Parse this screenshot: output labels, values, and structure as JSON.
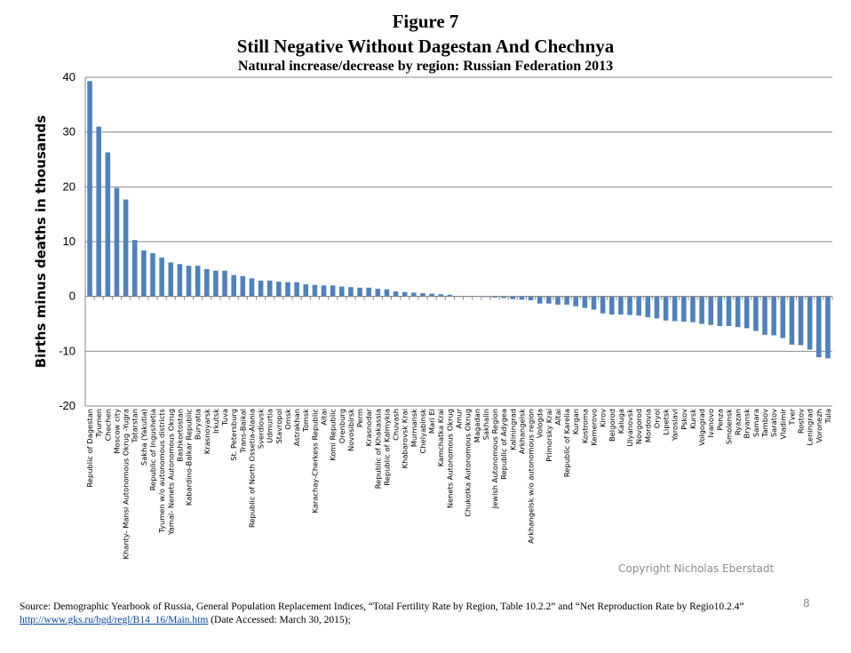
{
  "figure": {
    "label": "Figure 7",
    "title": "Still Negative Without Dagestan And Chechnya",
    "subtitle": "Natural increase/decrease by region: Russian Federation 2013"
  },
  "chart_data": {
    "type": "bar",
    "title": "Still Negative Without Dagestan And Chechnya",
    "subtitle": "Natural increase/decrease by region: Russian Federation 2013",
    "ylabel": "Births minus deaths in thousands",
    "xlabel": "",
    "ylim": [
      -20,
      40
    ],
    "yticks": [
      40,
      30,
      20,
      10,
      0,
      -10,
      -20
    ],
    "grid": true,
    "bar_color": "#4f81bd",
    "categories": [
      "Republic of Dagestan",
      "Tyumen",
      "Chechen",
      "Moscow city",
      "Khanty- Mansi Autonomous Okrug -Yugra",
      "Tatarstan",
      "Sakha (Yakutia)",
      "Republic of Ingushetia",
      "Tyumen w/o autonomous districts",
      "Yamal- Nenets Autonomous Okrug",
      "Bashkortostan",
      "Kabardino-Balkar Republic",
      "Buryatia",
      "Krasnoyarsk",
      "Irkutsk",
      "Tuva",
      "St. Petersburg",
      "Trans-Baikal",
      "Republic of North Ossetia-Alania",
      "Sverdlovsk",
      "Udmurtia",
      "Stavropol",
      "Omsk",
      "Astrakhan",
      "Tomsk",
      "Karachay-Cherkess Republic",
      "Altai",
      "Komi Republic",
      "Orenburg",
      "Novosibirsk",
      "Perm",
      "Krasnodar",
      "Republic of Khakassia",
      "Republic of Kalmykia",
      "Chuvash",
      "Khabarovsk Krai",
      "Murmansk",
      "Chelyabinsk",
      "Mari El",
      "Kamchatka Krai",
      "Nenets Autonomous Okrug",
      "Amur",
      "Chukotka Autonomous Okrug",
      "Magadan",
      "Sakhalin",
      "Jewish Autonomous Region",
      "Republic of Adygea",
      "Kaliningrad",
      "Arkhangelsk",
      "Arkhangelsk w/o autonomous region",
      "Vologda",
      "Primorsky Krai",
      "Altai",
      "Republic of Karelia",
      "Kurgan",
      "Kostroma",
      "Kemerovo",
      "Kirov",
      "Belgorod",
      "Kaluga",
      "Ulyanovsk",
      "Novgorod",
      "Mordovia",
      "Oryol",
      "Lipetsk",
      "Yaroslavl",
      "Pskov",
      "Kursk",
      "Volgograd",
      "Ivanovo",
      "Penza",
      "Smolensk",
      "Ryazan",
      "Bryansk",
      "Samara",
      "Tambov",
      "Saratov",
      "Vladimir",
      "Tver",
      "Rostov",
      "Leningrad",
      "Voronezh",
      "Tula"
    ],
    "values": [
      39.3,
      31.0,
      26.3,
      19.8,
      17.7,
      10.3,
      8.4,
      7.9,
      7.1,
      6.2,
      5.9,
      5.6,
      5.6,
      5.0,
      4.7,
      4.7,
      3.9,
      3.7,
      3.3,
      2.9,
      2.9,
      2.7,
      2.6,
      2.6,
      2.2,
      2.1,
      2.0,
      2.0,
      1.8,
      1.7,
      1.6,
      1.6,
      1.4,
      1.3,
      0.9,
      0.8,
      0.7,
      0.6,
      0.5,
      0.4,
      0.3,
      0.1,
      0.1,
      0.1,
      -0.1,
      -0.2,
      -0.3,
      -0.5,
      -0.6,
      -0.7,
      -1.3,
      -1.3,
      -1.5,
      -1.5,
      -1.8,
      -2.1,
      -2.4,
      -3.1,
      -3.3,
      -3.3,
      -3.4,
      -3.5,
      -3.8,
      -4.0,
      -4.4,
      -4.5,
      -4.6,
      -4.7,
      -5.0,
      -5.2,
      -5.4,
      -5.4,
      -5.6,
      -5.8,
      -6.3,
      -7.0,
      -7.1,
      -7.6,
      -8.8,
      -8.9,
      -9.7,
      -11.1,
      -11.3
    ]
  },
  "copyright": "Copyright Nicholas Eberstadt",
  "page_number": "8",
  "source": {
    "text_before": "Source: Demographic Yearbook of Russia, General Population Replacement Indices, “Total Fertility Rate by Region, Table 10.2.2” and “Net Reproduction Rate by Regio10.2.4” ",
    "link_text": "http://www.gks.ru/bgd/regl/B14_16/Main.htm",
    "text_after": " (Date Accessed: March 30, 2015);"
  }
}
